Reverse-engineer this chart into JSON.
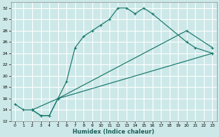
{
  "xlabel": "Humidex (Indice chaleur)",
  "bg_color": "#cde8e8",
  "grid_color": "#ffffff",
  "line_color": "#1a7a6e",
  "xlim": [
    -0.5,
    23.5
  ],
  "ylim": [
    12,
    33
  ],
  "xticks": [
    0,
    1,
    2,
    3,
    4,
    5,
    6,
    7,
    8,
    9,
    10,
    11,
    12,
    13,
    14,
    15,
    16,
    17,
    18,
    19,
    20,
    21,
    22,
    23
  ],
  "yticks": [
    12,
    14,
    16,
    18,
    20,
    22,
    24,
    26,
    28,
    30,
    32
  ],
  "line1_x": [
    0,
    1,
    2,
    5,
    6,
    7,
    8,
    9,
    10,
    11,
    12,
    13,
    14,
    15,
    16,
    20,
    21,
    23
  ],
  "line1_y": [
    15,
    14,
    14,
    16,
    19,
    25,
    27,
    28,
    29,
    30,
    32,
    32,
    31,
    32,
    31,
    26,
    25,
    24
  ],
  "line2_x": [
    2,
    3,
    4,
    5,
    20,
    23
  ],
  "line2_y": [
    14,
    13,
    13,
    16,
    28,
    25
  ],
  "line3_x": [
    2,
    3,
    4,
    5,
    23
  ],
  "line3_y": [
    14,
    13,
    13,
    16,
    24
  ],
  "xlabel_fontsize": 6,
  "tick_fontsize": 4.5,
  "linewidth": 0.9,
  "markersize": 3.5
}
